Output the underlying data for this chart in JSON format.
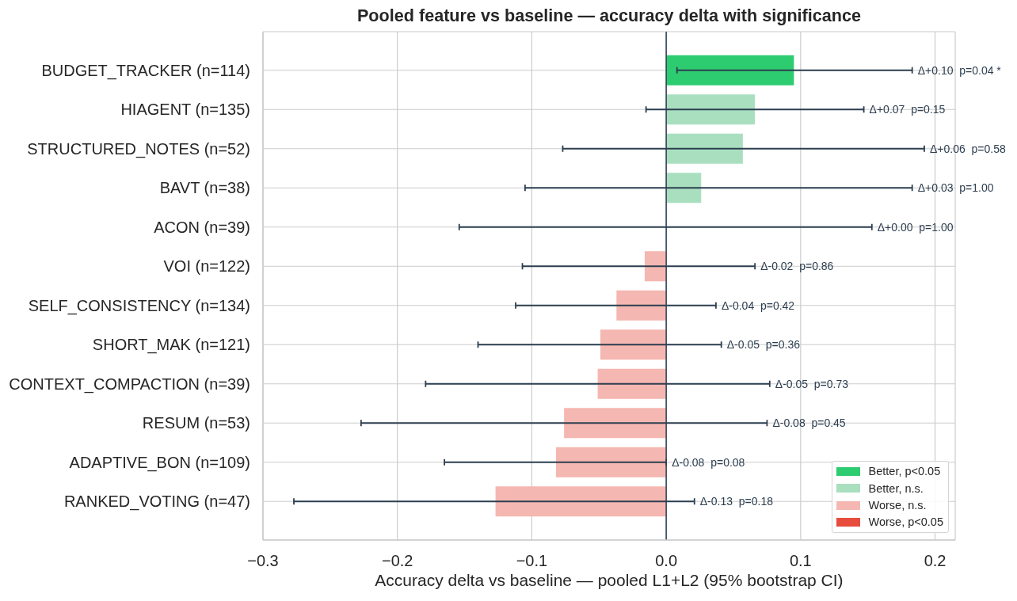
{
  "chart_data": {
    "type": "bar",
    "orientation": "horizontal",
    "stacked": true,
    "title": "Pooled feature vs baseline — accuracy delta with significance",
    "xlabel": "Accuracy delta vs baseline — pooled L1+L2 (95% bootstrap CI)",
    "categories": [
      "BUDGET_TRACKER (n=114)",
      "HIAGENT (n=135)",
      "STRUCTURED_NOTES (n=52)",
      "BAVT (n=38)",
      "ACON (n=39)",
      "VOI (n=122)",
      "SELF_CONSISTENCY (n=134)",
      "SHORT_MAK (n=121)",
      "CONTEXT_COMPACTION (n=39)",
      "RESUM (n=53)",
      "ADAPTIVE_BON (n=109)",
      "RANKED_VOTING (n=47)"
    ],
    "series": [
      {
        "name": "Better, p<0.05",
        "color": "#2ecc71",
        "values": [
          0.095,
          null,
          null,
          null,
          null,
          null,
          null,
          null,
          null,
          null,
          null,
          null
        ],
        "errors": [
          [
            0.008,
            0.183
          ],
          null,
          null,
          null,
          null,
          null,
          null,
          null,
          null,
          null,
          null,
          null
        ]
      },
      {
        "name": "Better, n.s.",
        "color": "#a9dfbf",
        "values": [
          null,
          0.066,
          0.057,
          0.026,
          0,
          null,
          null,
          null,
          null,
          null,
          null,
          null
        ],
        "errors": [
          null,
          [
            -0.015,
            0.147
          ],
          [
            -0.077,
            0.192
          ],
          [
            -0.105,
            0.183
          ],
          [
            -0.154,
            0.153
          ],
          null,
          null,
          null,
          null,
          null,
          null,
          null
        ]
      },
      {
        "name": "Worse, n.s.",
        "color": "#f5b7b1",
        "values": [
          null,
          null,
          null,
          null,
          null,
          -0.016,
          -0.037,
          -0.049,
          -0.051,
          -0.076,
          -0.082,
          -0.127
        ],
        "errors": [
          null,
          null,
          null,
          null,
          null,
          [
            -0.107,
            0.066
          ],
          [
            -0.112,
            0.037
          ],
          [
            -0.14,
            0.041
          ],
          [
            -0.179,
            0.077
          ],
          [
            -0.227,
            0.075
          ],
          [
            -0.165,
            0.0
          ],
          [
            -0.277,
            0.021
          ]
        ]
      },
      {
        "name": "Worse, p<0.05",
        "color": "#e74c3c",
        "values": [
          null,
          null,
          null,
          null,
          null,
          null,
          null,
          null,
          null,
          null,
          null,
          null
        ]
      }
    ],
    "annotations": [
      {
        "text": "Δ+0.10  p=0.04 *",
        "x": 0.183,
        "y": "BUDGET_TRACKER (n=114)"
      },
      {
        "text": "Δ+0.07  p=0.15",
        "x": 0.147,
        "y": "HIAGENT (n=135)"
      },
      {
        "text": "Δ+0.06  p=0.58",
        "x": 0.192,
        "y": "STRUCTURED_NOTES (n=52)"
      },
      {
        "text": "Δ+0.03  p=1.00",
        "x": 0.183,
        "y": "BAVT (n=38)"
      },
      {
        "text": "Δ+0.00  p=1.00",
        "x": 0.153,
        "y": "ACON (n=39)"
      },
      {
        "text": "Δ-0.02  p=0.86",
        "x": 0.066,
        "y": "VOI (n=122)"
      },
      {
        "text": "Δ-0.04  p=0.42",
        "x": 0.037,
        "y": "SELF_CONSISTENCY (n=134)"
      },
      {
        "text": "Δ-0.05  p=0.36",
        "x": 0.041,
        "y": "SHORT_MAK (n=121)"
      },
      {
        "text": "Δ-0.05  p=0.73",
        "x": 0.077,
        "y": "CONTEXT_COMPACTION (n=39)"
      },
      {
        "text": "Δ-0.08  p=0.45",
        "x": 0.075,
        "y": "RESUM (n=53)"
      },
      {
        "text": "Δ-0.08  p=0.08",
        "x": 0.0,
        "y": "ADAPTIVE_BON (n=109)"
      },
      {
        "text": "Δ-0.13  p=0.18",
        "x": 0.021,
        "y": "RANKED_VOTING (n=47)"
      }
    ],
    "xlim": [
      -0.3,
      0.215
    ],
    "xticks": [
      {
        "value": -0.3,
        "label": "−0.3"
      },
      {
        "value": -0.2,
        "label": "−0.2"
      },
      {
        "value": -0.1,
        "label": "−0.1"
      },
      {
        "value": 0,
        "label": "0.0"
      },
      0.1,
      0.2
    ],
    "ref_lines": [
      {
        "axis": "x",
        "value": 0,
        "color": "#2c3e50"
      }
    ],
    "grid": true,
    "legend": "bottom right"
  }
}
